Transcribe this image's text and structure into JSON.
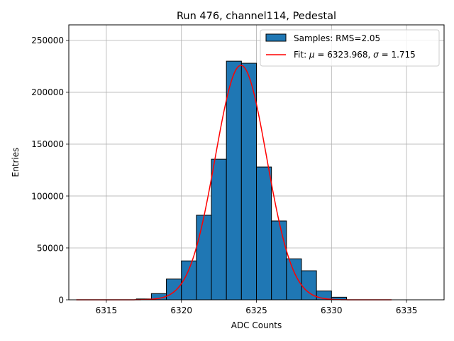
{
  "chart_data": {
    "type": "bar",
    "title": "Run 476, channel114, Pedestal",
    "xlabel": "ADC Counts",
    "ylabel": "Entries",
    "xlim": [
      6312.5,
      6337.5
    ],
    "ylim": [
      0,
      265000
    ],
    "xticks": [
      6315,
      6320,
      6325,
      6330,
      6335
    ],
    "yticks": [
      0,
      50000,
      100000,
      150000,
      200000,
      250000
    ],
    "grid": true,
    "legend_position": "top-right",
    "bin_width": 1,
    "series": [
      {
        "name": "Samples: RMS=2.05",
        "kind": "histogram",
        "color": "#1f77b4",
        "edge_color": "#000000",
        "bins": [
          {
            "x": 6317,
            "value": 800
          },
          {
            "x": 6318,
            "value": 6000
          },
          {
            "x": 6319,
            "value": 20000
          },
          {
            "x": 6320,
            "value": 37500
          },
          {
            "x": 6321,
            "value": 81500
          },
          {
            "x": 6322,
            "value": 135500
          },
          {
            "x": 6323,
            "value": 230000
          },
          {
            "x": 6324,
            "value": 228000
          },
          {
            "x": 6325,
            "value": 128000
          },
          {
            "x": 6326,
            "value": 76000
          },
          {
            "x": 6327,
            "value": 39500
          },
          {
            "x": 6328,
            "value": 28000
          },
          {
            "x": 6329,
            "value": 8500
          },
          {
            "x": 6330,
            "value": 2500
          }
        ]
      },
      {
        "name": "Fit: μ = 6323.968, σ = 1.715",
        "kind": "gaussian-fit",
        "color": "#ff0000",
        "mu": 6323.968,
        "sigma": 1.715,
        "amplitude": 226000,
        "x_range": [
          6313,
          6334
        ]
      }
    ],
    "legend": {
      "samples_label": "Samples: RMS=2.05",
      "fit_prefix": "Fit: ",
      "mu_symbol": "μ",
      "fit_mu_text": " = 6323.968, ",
      "sigma_symbol": "σ",
      "fit_sigma_text": " = 1.715"
    }
  }
}
